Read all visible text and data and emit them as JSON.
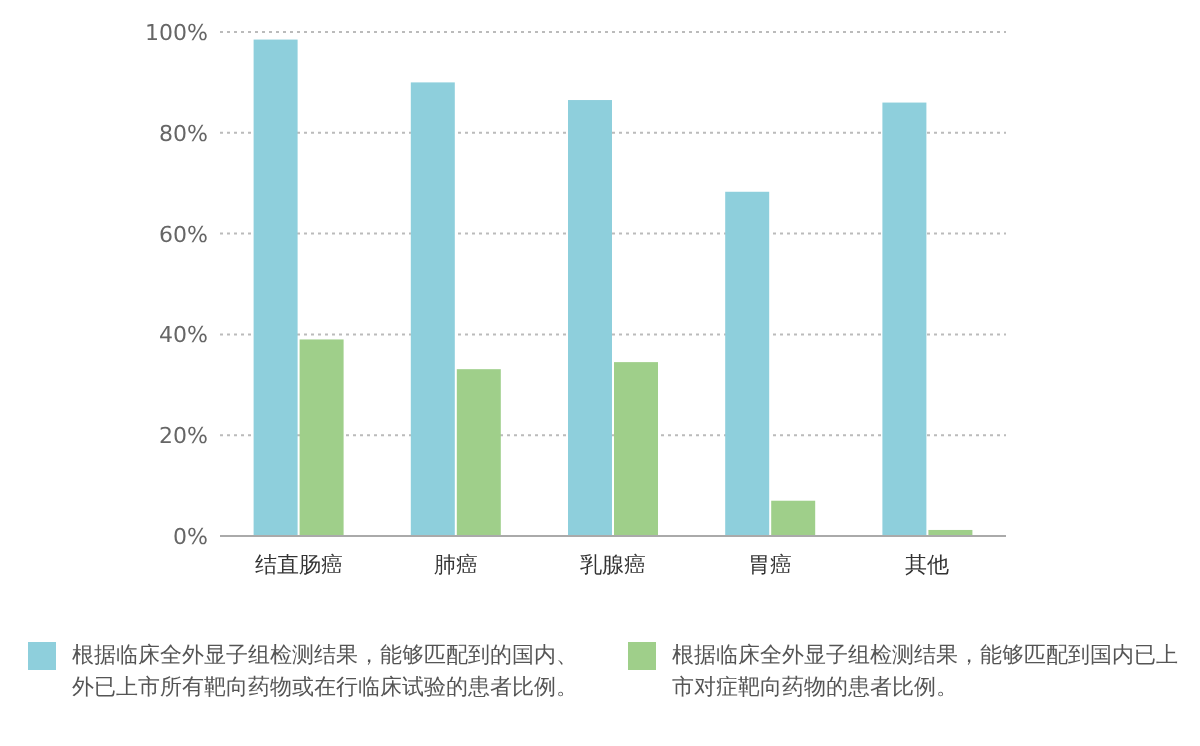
{
  "chart_data": {
    "type": "bar",
    "categories": [
      "结直肠癌",
      "肺癌",
      "乳腺癌",
      "胃癌",
      "其他"
    ],
    "series": [
      {
        "name": "根据临床全外显子组检测结果，能够匹配到的国内、外已上市所有靶向药物或在行临床试验的患者比例。",
        "color": "#8ecfdc",
        "values": [
          98.5,
          90,
          86.5,
          68.3,
          86
        ]
      },
      {
        "name": "根据临床全外显子组检测结果，能够匹配到国内已上市对症靶向药物的患者比例。",
        "color": "#9fcf8a",
        "values": [
          39,
          33.1,
          34.5,
          7,
          1.2
        ]
      }
    ],
    "ylim": [
      0,
      100
    ],
    "yticks": [
      {
        "value": 0,
        "label": "0%"
      },
      {
        "value": 20,
        "label": "20%"
      },
      {
        "value": 40,
        "label": "40%"
      },
      {
        "value": 60,
        "label": "60%"
      },
      {
        "value": 80,
        "label": "80%"
      },
      {
        "value": 100,
        "label": "100%"
      }
    ],
    "grid": "y",
    "legend": "bottom"
  }
}
